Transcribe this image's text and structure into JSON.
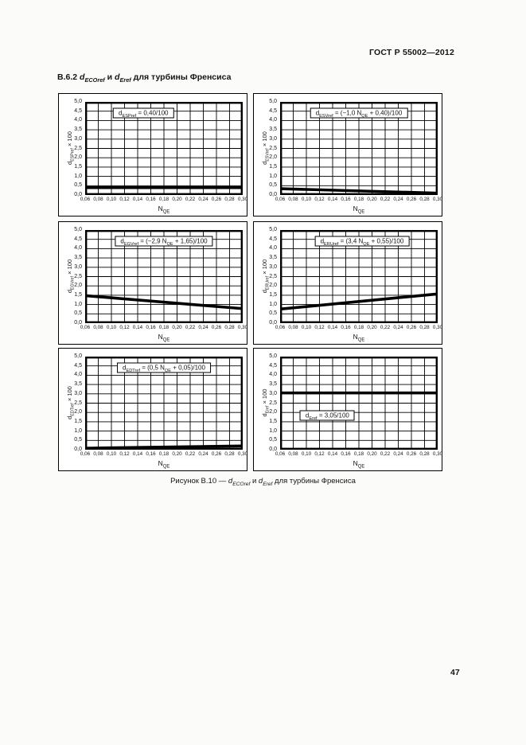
{
  "header": {
    "title": "ГОСТ Р 55002—2012"
  },
  "heading": {
    "number": "В.6.2 ",
    "d1": "d",
    "d1_sub": "ECOref",
    "conj": " и ",
    "d2": "d",
    "d2_sub": "Eref",
    "tail": " для турбины Френсиса"
  },
  "caption": {
    "prefix": "Рисунок В.10 — ",
    "d1": "d",
    "d1_sub": "ECOref",
    "conj": " и ",
    "d2": "d",
    "d2_sub": "Eref",
    "tail": " для турбины Френсиса"
  },
  "page_number": "47",
  "axis": {
    "xlabel": [
      {
        "t": "N"
      },
      {
        "s": "QE"
      }
    ],
    "x_ticks": [
      "0,06",
      "0,08",
      "0,10",
      "0,12",
      "0,14",
      "0,16",
      "0,18",
      "0,20",
      "0,22",
      "0,24",
      "0,26",
      "0,28",
      "0,30"
    ],
    "y_ticks": [
      "0,0",
      "0,5",
      "1,0",
      "1,5",
      "2,0",
      "2,5",
      "3,0",
      "3,5",
      "4,0",
      "4,5",
      "5,0"
    ],
    "x_range": [
      0.06,
      0.3
    ],
    "y_range": [
      0,
      5
    ],
    "grid": true
  },
  "chart_data": {
    "type": "line",
    "charts": [
      {
        "name": "d_ESPref",
        "formula_text": "d_ESPref = 0,40/100",
        "ylabel": [
          {
            "t": "d"
          },
          {
            "s": "ESPref"
          },
          {
            "t": " × 100"
          }
        ],
        "formula": [
          {
            "t": "d"
          },
          {
            "s": "ESPref"
          },
          {
            "t": " = 0,40/100"
          }
        ],
        "line": {
          "x": [
            0.06,
            0.3
          ],
          "y": [
            0.4,
            0.4
          ]
        },
        "box": {
          "fx": 0.37,
          "fy": 0.12
        }
      },
      {
        "name": "d_ESVref",
        "formula_text": "d_ESVref = (−1,0 N_QE + 0,40)/100",
        "ylabel": [
          {
            "t": "d"
          },
          {
            "s": "ESVref"
          },
          {
            "t": " × 100"
          }
        ],
        "formula": [
          {
            "t": "d"
          },
          {
            "s": "ESVref"
          },
          {
            "t": " = (−1,0 N"
          },
          {
            "s": "QE"
          },
          {
            "t": " + 0,40)/100"
          }
        ],
        "line": {
          "x": [
            0.06,
            0.3
          ],
          "y": [
            0.34,
            0.1
          ]
        },
        "box": {
          "fx": 0.5,
          "fy": 0.12
        }
      },
      {
        "name": "d_EGVref",
        "formula_text": "d_EGVref = (−2,9 N_QE + 1,65)/100",
        "ylabel": [
          {
            "t": "d"
          },
          {
            "s": "EGVref"
          },
          {
            "t": " × 100"
          }
        ],
        "formula": [
          {
            "t": "d"
          },
          {
            "s": "EGVref"
          },
          {
            "t": " = (−2,9 N"
          },
          {
            "s": "QE"
          },
          {
            "t": " + 1,65)/100"
          }
        ],
        "line": {
          "x": [
            0.06,
            0.3
          ],
          "y": [
            1.476,
            0.78
          ]
        },
        "box": {
          "fx": 0.5,
          "fy": 0.12
        }
      },
      {
        "name": "d_ERUref",
        "formula_text": "d_ERUref = (3,4 N_QE + 0,55)/100",
        "ylabel": [
          {
            "t": "d"
          },
          {
            "s": "ERUref"
          },
          {
            "t": " × 100"
          }
        ],
        "formula": [
          {
            "t": "d"
          },
          {
            "s": "ERUref"
          },
          {
            "t": " = (3,4 N"
          },
          {
            "s": "QE"
          },
          {
            "t": " + 0,55)/100"
          }
        ],
        "line": {
          "x": [
            0.06,
            0.3
          ],
          "y": [
            0.754,
            1.57
          ]
        },
        "box": {
          "fx": 0.52,
          "fy": 0.12
        }
      },
      {
        "name": "d_EDTref",
        "formula_text": "d_EDTref = (0,5 N_QE + 0,05)/100",
        "ylabel": [
          {
            "t": "d"
          },
          {
            "s": "EDTref"
          },
          {
            "t": " × 100"
          }
        ],
        "formula": [
          {
            "t": "d"
          },
          {
            "s": "EDTref"
          },
          {
            "t": " = (0,5 N"
          },
          {
            "s": "QE"
          },
          {
            "t": " + 0,05)/100"
          }
        ],
        "line": {
          "x": [
            0.06,
            0.3
          ],
          "y": [
            0.08,
            0.2
          ]
        },
        "box": {
          "fx": 0.5,
          "fy": 0.12
        }
      },
      {
        "name": "d_Eref",
        "formula_text": "d_Eref = 3,05/100",
        "ylabel": [
          {
            "t": "d"
          },
          {
            "s": "Eref"
          },
          {
            "t": " × 100"
          }
        ],
        "formula": [
          {
            "t": "d"
          },
          {
            "s": "Eref"
          },
          {
            "t": " = 3,05/100"
          }
        ],
        "line": {
          "x": [
            0.06,
            0.3
          ],
          "y": [
            3.05,
            3.05
          ]
        },
        "box": {
          "fx": 0.3,
          "fy": 0.63
        }
      }
    ]
  },
  "colors": {
    "ink": "#000000",
    "paper": "#ffffff"
  }
}
